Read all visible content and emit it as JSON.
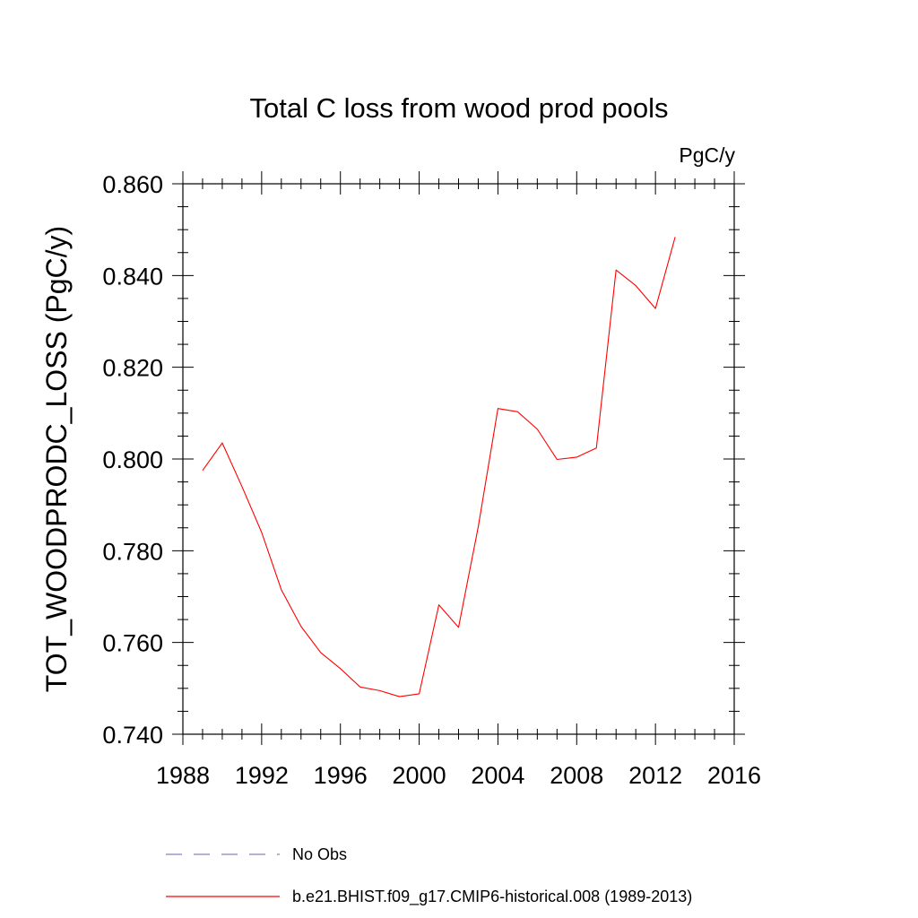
{
  "chart_data": {
    "type": "line",
    "title": "Total C loss from wood prod pools",
    "units": "PgC/y",
    "ylabel": "TOT_WOODPRODC_LOSS  (PgC/y)",
    "xlabel": "",
    "xlim": [
      1988,
      2016
    ],
    "ylim": [
      0.74,
      0.86
    ],
    "xticks": [
      1988,
      1992,
      1996,
      2000,
      2004,
      2008,
      2012,
      2016
    ],
    "xtick_labels": [
      "1988",
      "1992",
      "1996",
      "2000",
      "2004",
      "2008",
      "2012",
      "2016"
    ],
    "yticks": [
      0.74,
      0.76,
      0.78,
      0.8,
      0.82,
      0.84,
      0.86
    ],
    "ytick_labels": [
      "0.740",
      "0.760",
      "0.780",
      "0.800",
      "0.820",
      "0.840",
      "0.860"
    ],
    "grid": false,
    "legend_position": "bottom",
    "series": [
      {
        "name": "b.e21.BHIST.f09_g17.CMIP6-historical.008 (1989-2013)",
        "color": "#ff0000",
        "style": "solid",
        "x": [
          1989,
          1990,
          1991,
          1992,
          1993,
          1994,
          1995,
          1996,
          1997,
          1998,
          1999,
          2000,
          2001,
          2002,
          2003,
          2004,
          2005,
          2006,
          2007,
          2008,
          2009,
          2010,
          2011,
          2012,
          2013
        ],
        "y": [
          0.7975,
          0.8035,
          0.794,
          0.784,
          0.7715,
          0.7635,
          0.7578,
          0.7543,
          0.7503,
          0.7495,
          0.7482,
          0.7488,
          0.7682,
          0.7633,
          0.7852,
          0.811,
          0.8103,
          0.8065,
          0.7999,
          0.8004,
          0.8024,
          0.8412,
          0.8378,
          0.8328,
          0.8484
        ]
      }
    ],
    "legend": [
      {
        "label": "No Obs",
        "color": "#8080c0",
        "style": "dashed"
      },
      {
        "label": "b.e21.BHIST.f09_g17.CMIP6-historical.008 (1989-2013)",
        "color": "#ff0000",
        "style": "solid"
      }
    ]
  }
}
